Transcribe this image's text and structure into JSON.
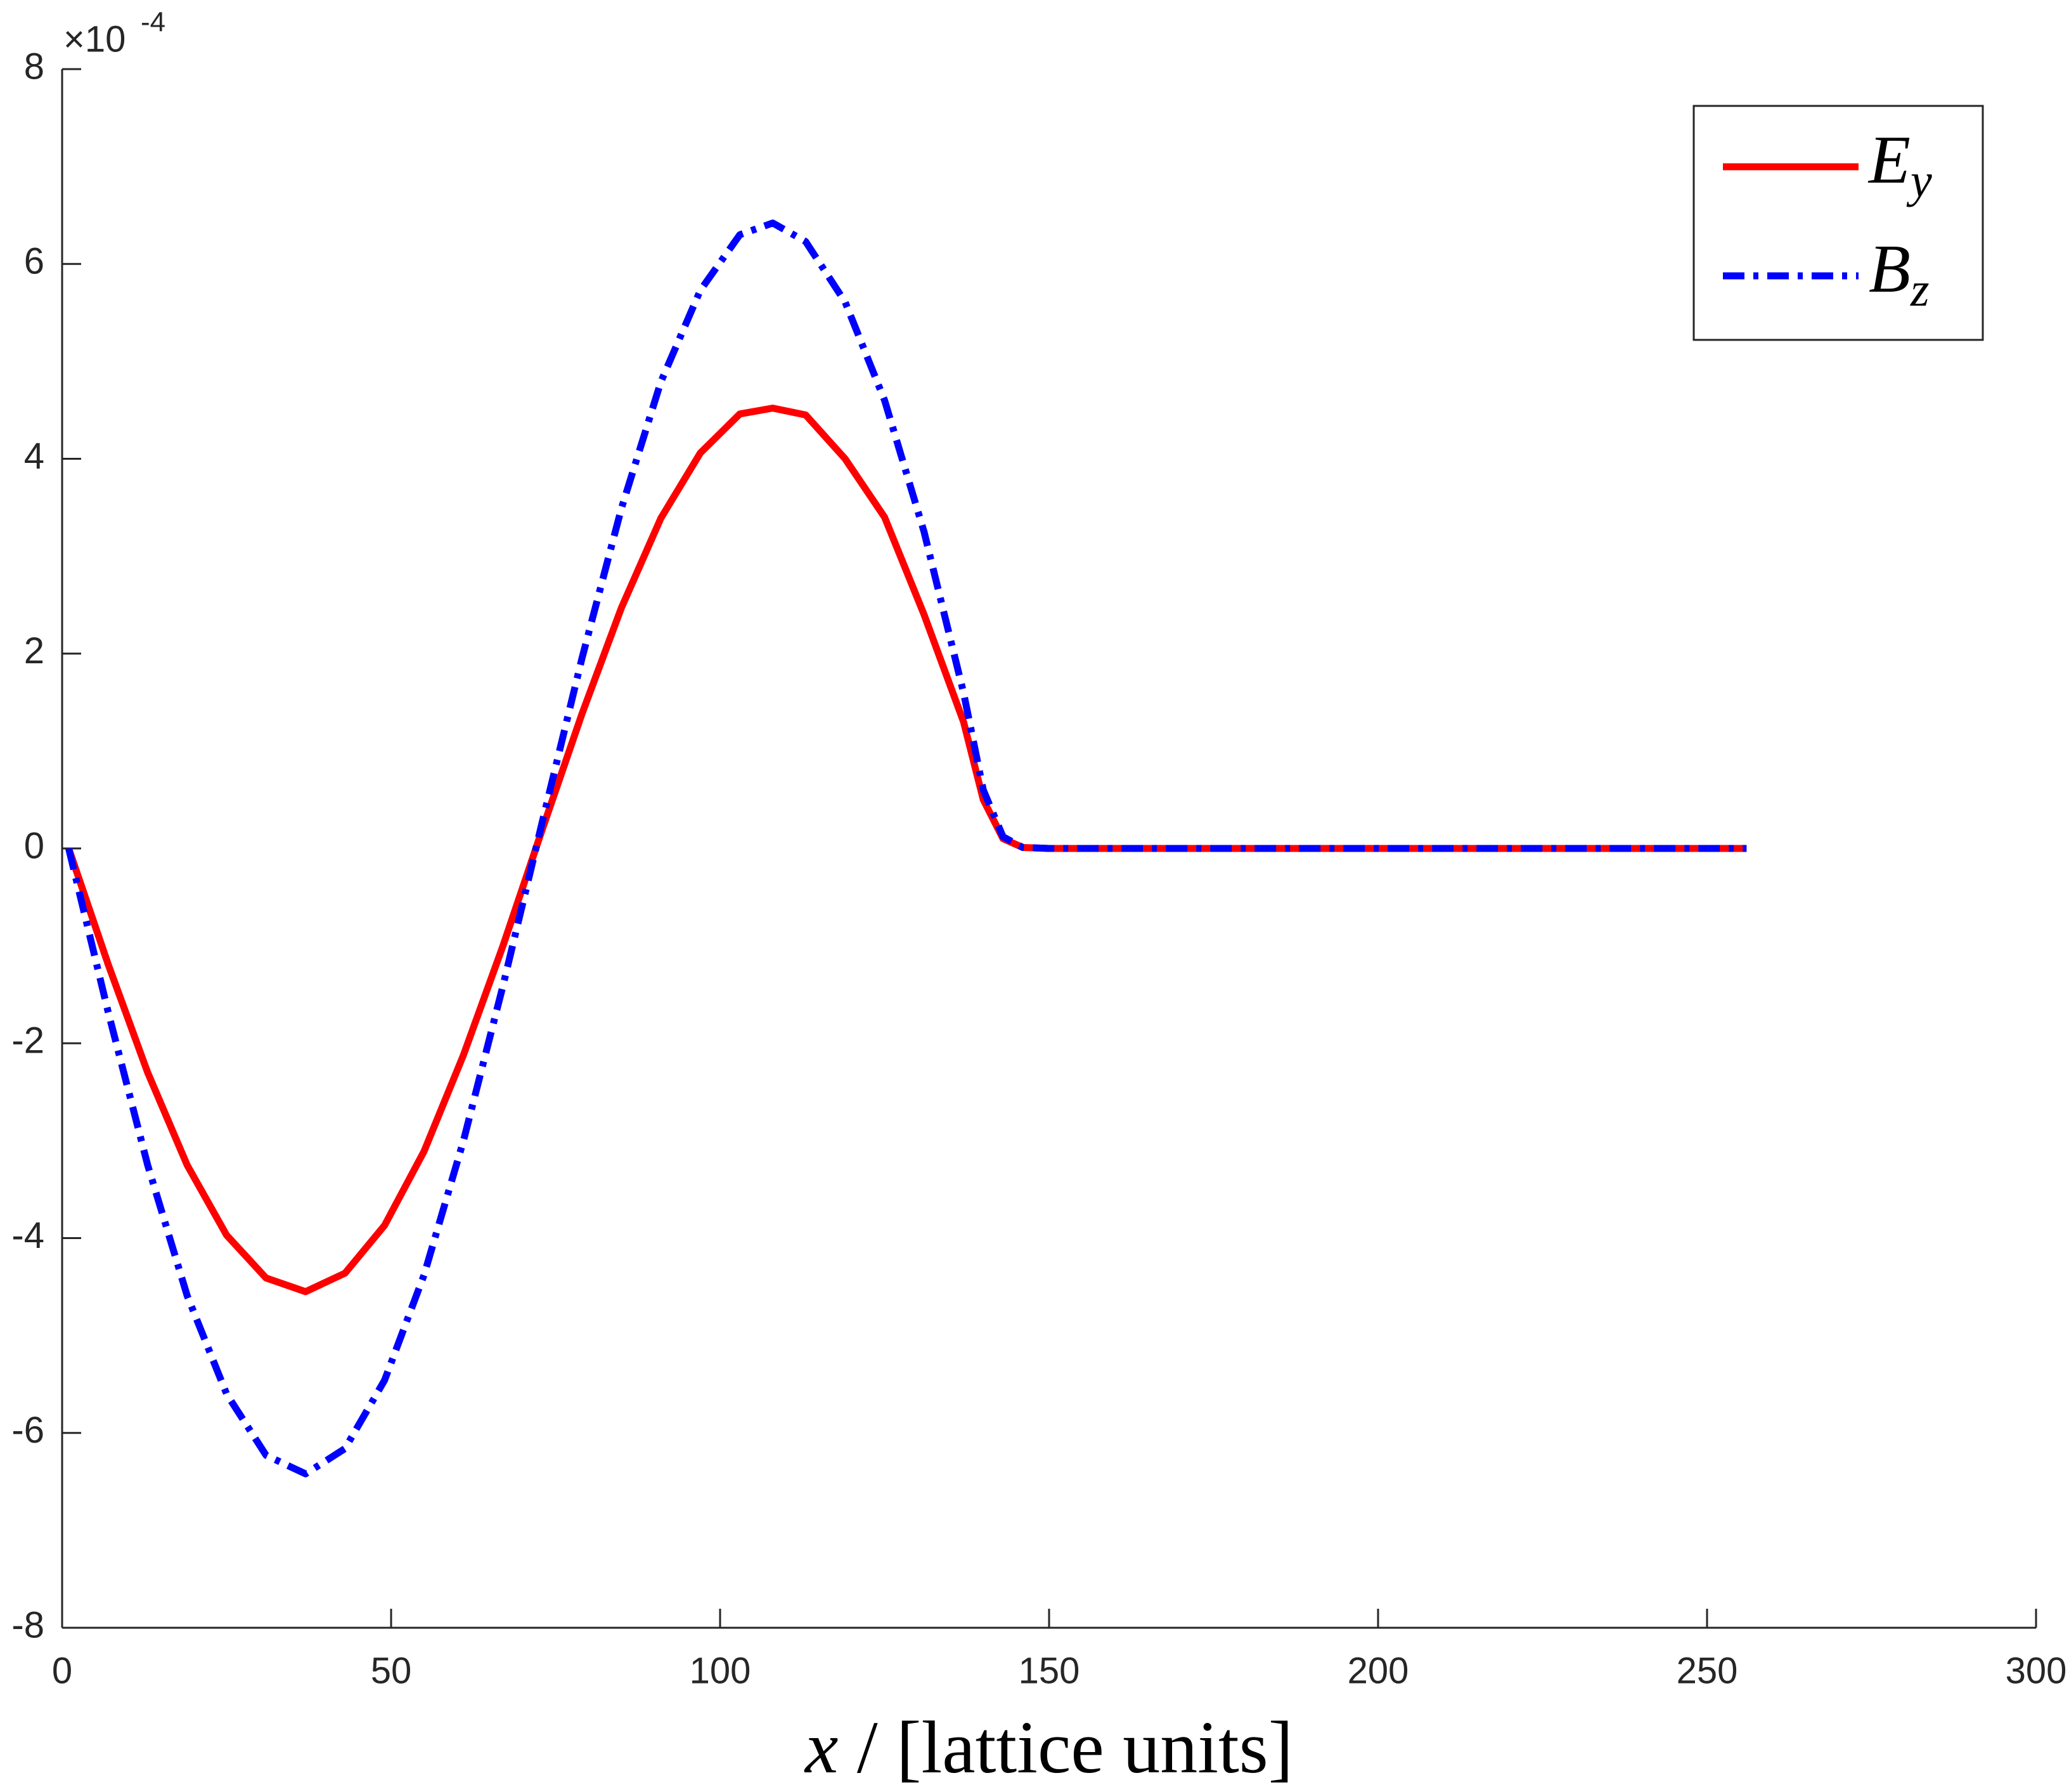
{
  "chart_data": {
    "type": "line",
    "x_label": "x / [lattice units]",
    "y_scale_base": "×10",
    "y_scale_exponent": "-4",
    "x": [
      1,
      7,
      13,
      19,
      25,
      31,
      37,
      43,
      49,
      55,
      61,
      67,
      73,
      79,
      85,
      91,
      97,
      103,
      108,
      113,
      119,
      125,
      131,
      137,
      140,
      143,
      146,
      150,
      180,
      220,
      256
    ],
    "series": [
      {
        "name": "Ey",
        "color": "#ff0000",
        "style": "solid",
        "values": [
          0,
          -1.19,
          -2.3,
          -3.25,
          -3.97,
          -4.41,
          -4.55,
          -4.36,
          -3.87,
          -3.11,
          -2.12,
          -1.0,
          0.2,
          1.38,
          2.47,
          3.39,
          4.06,
          4.46,
          4.52,
          4.45,
          4.0,
          3.4,
          2.4,
          1.3,
          0.5,
          0.1,
          0.01,
          0,
          0,
          0,
          0
        ]
      },
      {
        "name": "Bz",
        "color": "#0000ff",
        "style": "dashdot",
        "values": [
          0,
          -1.68,
          -3.25,
          -4.59,
          -5.6,
          -6.23,
          -6.42,
          -6.16,
          -5.46,
          -4.38,
          -3.0,
          -1.41,
          0.28,
          1.95,
          3.49,
          4.79,
          5.73,
          6.3,
          6.42,
          6.23,
          5.61,
          4.6,
          3.25,
          1.6,
          0.6,
          0.12,
          0.01,
          0,
          0,
          0,
          0
        ]
      }
    ],
    "xlim": [
      0,
      300
    ],
    "xticks": [
      0,
      50,
      100,
      150,
      200,
      250,
      300
    ],
    "ylim": [
      -8,
      8
    ],
    "yticks": [
      -8,
      -6,
      -4,
      -2,
      0,
      2,
      4,
      6,
      8
    ],
    "grid": false,
    "legend": "upper right"
  }
}
